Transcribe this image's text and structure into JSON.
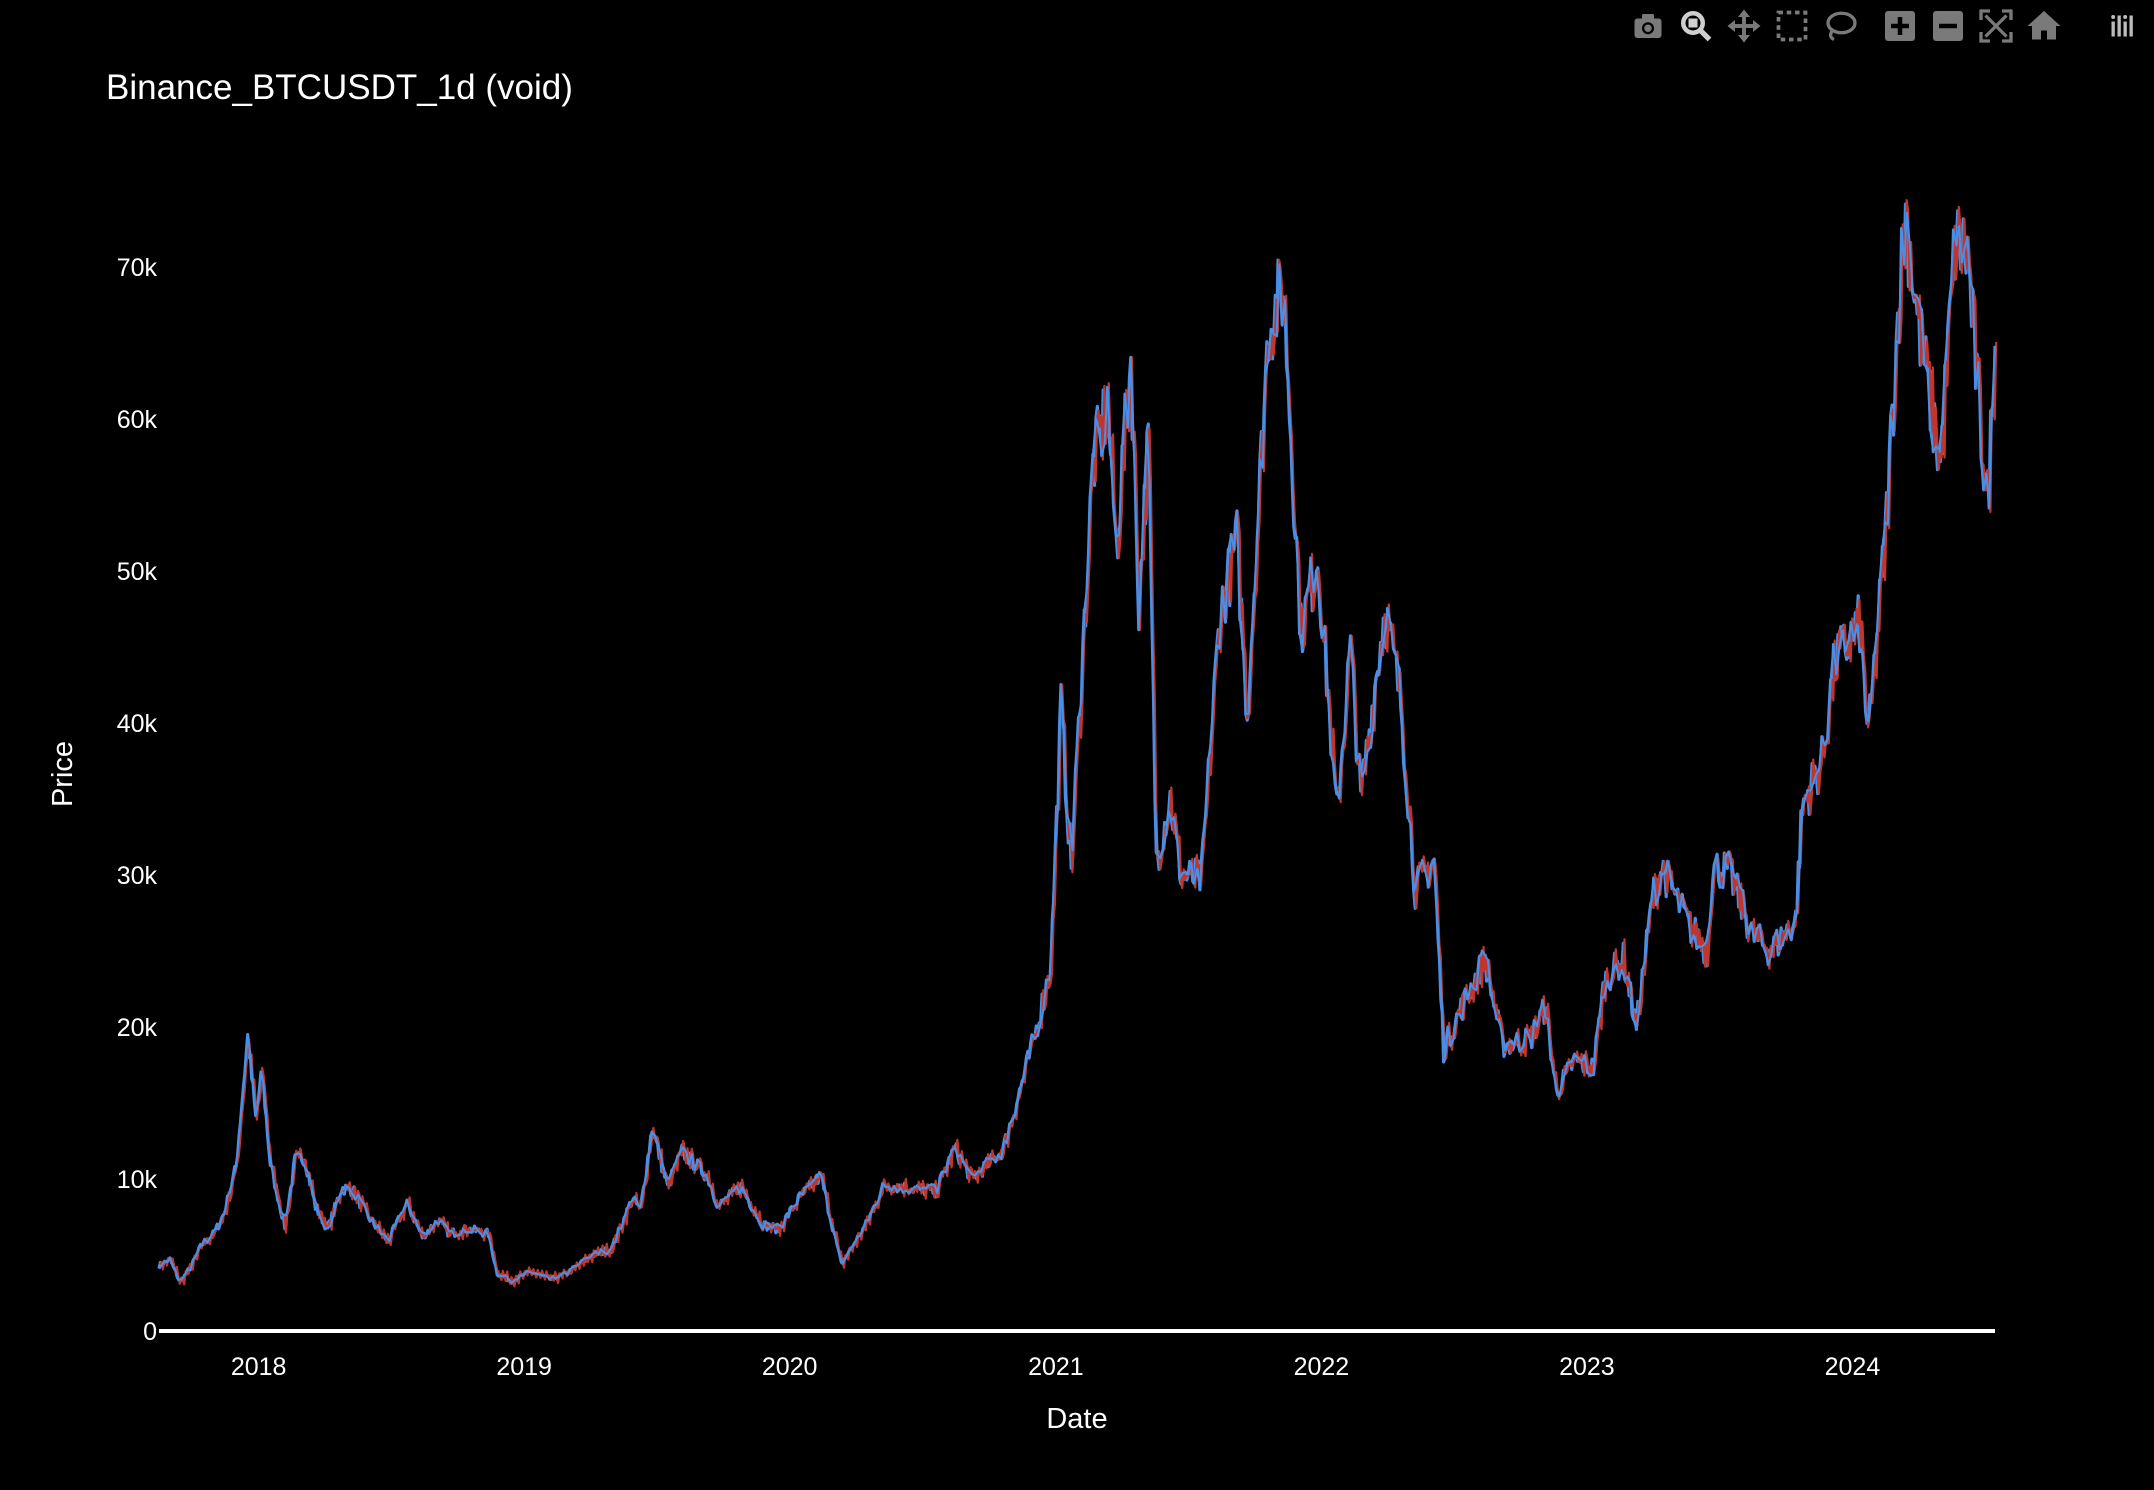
{
  "modebar": {
    "buttons": [
      "camera-icon",
      "zoom-icon",
      "pan-icon",
      "box-select-icon",
      "lasso-select-icon",
      "zoom-in-icon",
      "zoom-out-icon",
      "autoscale-icon",
      "reset-axes-icon",
      "plotly-logo-icon"
    ],
    "icon_color": "#7a7a7a",
    "active_icon_color": "#cfcfcf"
  },
  "chart_data": {
    "type": "line",
    "title": "Binance_BTCUSDT_1d (void)",
    "xlabel": "Date",
    "ylabel": "Price",
    "x_tick_labels": [
      "2018",
      "2019",
      "2020",
      "2021",
      "2022",
      "2023",
      "2024"
    ],
    "y_tick_labels": [
      "0",
      "10k",
      "20k",
      "30k",
      "40k",
      "50k",
      "60k",
      "70k"
    ],
    "y_tick_values": [
      0,
      10000,
      20000,
      30000,
      40000,
      50000,
      60000,
      70000
    ],
    "xlim": [
      "2017-08-17",
      "2024-07-15"
    ],
    "ylim": [
      0,
      79000
    ],
    "grid": false,
    "series": [
      {
        "color": "#4a8fe7",
        "values": [
          [
            "2017-08-17",
            4300
          ],
          [
            "2017-09-01",
            4700
          ],
          [
            "2017-09-15",
            3200
          ],
          [
            "2017-10-01",
            4300
          ],
          [
            "2017-10-15",
            5700
          ],
          [
            "2017-11-01",
            6400
          ],
          [
            "2017-11-15",
            7800
          ],
          [
            "2017-12-01",
            10800
          ],
          [
            "2017-12-17",
            19300
          ],
          [
            "2017-12-28",
            14000
          ],
          [
            "2018-01-06",
            17000
          ],
          [
            "2018-01-17",
            11000
          ],
          [
            "2018-02-06",
            6900
          ],
          [
            "2018-02-20",
            11200
          ],
          [
            "2018-03-05",
            11500
          ],
          [
            "2018-03-20",
            8200
          ],
          [
            "2018-04-06",
            6700
          ],
          [
            "2018-04-25",
            9400
          ],
          [
            "2018-05-10",
            9300
          ],
          [
            "2018-06-01",
            7500
          ],
          [
            "2018-06-28",
            5900
          ],
          [
            "2018-07-24",
            8400
          ],
          [
            "2018-08-14",
            6200
          ],
          [
            "2018-09-05",
            7300
          ],
          [
            "2018-09-20",
            6400
          ],
          [
            "2018-10-15",
            6700
          ],
          [
            "2018-11-13",
            6400
          ],
          [
            "2018-11-25",
            3800
          ],
          [
            "2018-12-15",
            3300
          ],
          [
            "2019-01-10",
            3900
          ],
          [
            "2019-02-07",
            3400
          ],
          [
            "2019-03-01",
            3800
          ],
          [
            "2019-04-05",
            5000
          ],
          [
            "2019-05-01",
            5400
          ],
          [
            "2019-05-30",
            8700
          ],
          [
            "2019-06-10",
            8000
          ],
          [
            "2019-06-26",
            13400
          ],
          [
            "2019-07-17",
            9500
          ],
          [
            "2019-08-06",
            11800
          ],
          [
            "2019-09-10",
            10200
          ],
          [
            "2019-09-25",
            8200
          ],
          [
            "2019-10-26",
            9500
          ],
          [
            "2019-11-25",
            7000
          ],
          [
            "2019-12-17",
            6700
          ],
          [
            "2020-01-15",
            8800
          ],
          [
            "2020-02-13",
            10200
          ],
          [
            "2020-03-12",
            4400
          ],
          [
            "2020-04-15",
            7000
          ],
          [
            "2020-05-10",
            9600
          ],
          [
            "2020-06-15",
            9400
          ],
          [
            "2020-07-20",
            9200
          ],
          [
            "2020-08-15",
            12000
          ],
          [
            "2020-09-08",
            10000
          ],
          [
            "2020-10-20",
            11900
          ],
          [
            "2020-11-10",
            15400
          ],
          [
            "2020-12-01",
            19000
          ],
          [
            "2020-12-25",
            24000
          ],
          [
            "2021-01-08",
            41000
          ],
          [
            "2021-01-22",
            30500
          ],
          [
            "2021-02-21",
            57000
          ],
          [
            "2021-03-13",
            61000
          ],
          [
            "2021-03-25",
            51500
          ],
          [
            "2021-04-14",
            64000
          ],
          [
            "2021-04-25",
            48000
          ],
          [
            "2021-05-08",
            58500
          ],
          [
            "2021-05-19",
            31000
          ],
          [
            "2021-06-07",
            35000
          ],
          [
            "2021-06-22",
            30000
          ],
          [
            "2021-07-20",
            29700
          ],
          [
            "2021-08-14",
            47000
          ],
          [
            "2021-09-07",
            52000
          ],
          [
            "2021-09-21",
            40500
          ],
          [
            "2021-10-20",
            66000
          ],
          [
            "2021-11-10",
            68500
          ],
          [
            "2021-12-04",
            46000
          ],
          [
            "2021-12-27",
            51000
          ],
          [
            "2022-01-22",
            34000
          ],
          [
            "2022-02-10",
            45000
          ],
          [
            "2022-02-24",
            35000
          ],
          [
            "2022-03-29",
            47500
          ],
          [
            "2022-04-20",
            41500
          ],
          [
            "2022-05-10",
            29000
          ],
          [
            "2022-06-05",
            31000
          ],
          [
            "2022-06-18",
            18500
          ],
          [
            "2022-07-10",
            21000
          ],
          [
            "2022-08-14",
            24500
          ],
          [
            "2022-09-07",
            18800
          ],
          [
            "2022-10-15",
            19200
          ],
          [
            "2022-11-05",
            21300
          ],
          [
            "2022-11-20",
            15700
          ],
          [
            "2022-12-15",
            17800
          ],
          [
            "2023-01-10",
            17300
          ],
          [
            "2023-01-25",
            23000
          ],
          [
            "2023-02-20",
            24500
          ],
          [
            "2023-03-10",
            20000
          ],
          [
            "2023-04-01",
            28500
          ],
          [
            "2023-04-14",
            30500
          ],
          [
            "2023-05-20",
            26800
          ],
          [
            "2023-06-15",
            25000
          ],
          [
            "2023-06-23",
            30500
          ],
          [
            "2023-07-15",
            30300
          ],
          [
            "2023-08-17",
            26000
          ],
          [
            "2023-09-11",
            25000
          ],
          [
            "2023-10-15",
            27000
          ],
          [
            "2023-10-24",
            34500
          ],
          [
            "2023-11-20",
            37500
          ],
          [
            "2023-12-08",
            44000
          ],
          [
            "2024-01-11",
            46500
          ],
          [
            "2024-01-23",
            39000
          ],
          [
            "2024-02-15",
            52000
          ],
          [
            "2024-03-05",
            68000
          ],
          [
            "2024-03-14",
            73500
          ],
          [
            "2024-04-01",
            66000
          ],
          [
            "2024-05-01",
            57000
          ],
          [
            "2024-05-21",
            71500
          ],
          [
            "2024-06-07",
            71000
          ],
          [
            "2024-06-24",
            60000
          ],
          [
            "2024-07-05",
            54500
          ],
          [
            "2024-07-15",
            64800
          ]
        ]
      }
    ],
    "overlay_color": "#c0362c"
  }
}
